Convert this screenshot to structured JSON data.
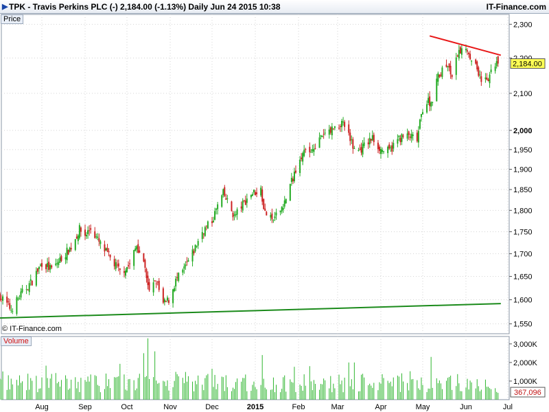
{
  "header": {
    "title": "TPK - Travis Perkins PLC (-)     2,184.00 (-1.13%)     Daily  Jun 24 2015 10:38",
    "brand": "IT-Finance.com"
  },
  "panels": {
    "price_label": "Price",
    "volume_label": "Volume",
    "copyright": "© IT-Finance.com"
  },
  "colors": {
    "up": "#22aa22",
    "down": "#cc2222",
    "support_line": "#1a8a1a",
    "resistance_line": "#e81818",
    "last_price_box": "#ffff55",
    "volume_bar": "#2db52d",
    "volume_box": "#ffffff",
    "grid": "#d4d4d4",
    "header_icon": "#1a46a8"
  },
  "chart_data": [
    {
      "type": "candlestick",
      "title": "TPK - Travis Perkins PLC (-)",
      "y_axis": {
        "scale": "log",
        "range": [
          1530,
          2330
        ],
        "ticks": [
          1550,
          1600,
          1650,
          1700,
          1750,
          1800,
          1850,
          1900,
          1950,
          2000,
          2100,
          2200,
          2300
        ],
        "tick_labels": [
          "1,550",
          "1,600",
          "1,650",
          "1,700",
          "1,750",
          "1,800",
          "1,850",
          "1,900",
          "1,950",
          "2,000",
          "2,100",
          "2,200",
          "2,300"
        ]
      },
      "x_axis": {
        "range": [
          "2014-07-02",
          "2015-07-02"
        ],
        "ticks": [
          {
            "date": "2014-08-01",
            "label": "Aug"
          },
          {
            "date": "2014-09-01",
            "label": "Sep"
          },
          {
            "date": "2014-10-01",
            "label": "Oct"
          },
          {
            "date": "2014-11-01",
            "label": "Nov"
          },
          {
            "date": "2014-12-01",
            "label": "Dec"
          },
          {
            "date": "2015-01-01",
            "label": "2015"
          },
          {
            "date": "2015-02-01",
            "label": "Feb"
          },
          {
            "date": "2015-03-01",
            "label": "Mar"
          },
          {
            "date": "2015-04-01",
            "label": "Apr"
          },
          {
            "date": "2015-05-01",
            "label": "May"
          },
          {
            "date": "2015-06-01",
            "label": "Jun"
          },
          {
            "date": "2015-07-01",
            "label": "Jul"
          }
        ]
      },
      "grid": true,
      "last_price": 2184,
      "last_price_label": "2,184.00",
      "trend_lines": [
        {
          "name": "support",
          "from": {
            "date": "2014-07-02",
            "value": 1562
          },
          "to": {
            "date": "2015-06-26",
            "value": 1592
          }
        },
        {
          "name": "resistance",
          "from": {
            "date": "2015-05-06",
            "value": 2265
          },
          "to": {
            "date": "2015-06-26",
            "value": 2208
          }
        }
      ],
      "close_path": [
        [
          "2014-07-02",
          1608
        ],
        [
          "2014-07-10",
          1580
        ],
        [
          "2014-07-18",
          1615
        ],
        [
          "2014-07-25",
          1640
        ],
        [
          "2014-08-01",
          1680
        ],
        [
          "2014-08-08",
          1665
        ],
        [
          "2014-08-15",
          1690
        ],
        [
          "2014-08-22",
          1715
        ],
        [
          "2014-08-28",
          1755
        ],
        [
          "2014-09-01",
          1742
        ],
        [
          "2014-09-05",
          1758
        ],
        [
          "2014-09-12",
          1720
        ],
        [
          "2014-09-19",
          1690
        ],
        [
          "2014-09-26",
          1660
        ],
        [
          "2014-10-03",
          1675
        ],
        [
          "2014-10-08",
          1720
        ],
        [
          "2014-10-13",
          1680
        ],
        [
          "2014-10-17",
          1615
        ],
        [
          "2014-10-22",
          1640
        ],
        [
          "2014-10-27",
          1590
        ],
        [
          "2014-10-31",
          1600
        ],
        [
          "2014-11-05",
          1640
        ],
        [
          "2014-11-10",
          1660
        ],
        [
          "2014-11-17",
          1700
        ],
        [
          "2014-11-24",
          1750
        ],
        [
          "2014-12-01",
          1775
        ],
        [
          "2014-12-05",
          1810
        ],
        [
          "2014-12-09",
          1840
        ],
        [
          "2014-12-12",
          1820
        ],
        [
          "2014-12-17",
          1785
        ],
        [
          "2014-12-22",
          1810
        ],
        [
          "2014-12-29",
          1840
        ],
        [
          "2015-01-05",
          1850
        ],
        [
          "2015-01-08",
          1795
        ],
        [
          "2015-01-13",
          1775
        ],
        [
          "2015-01-16",
          1785
        ],
        [
          "2015-01-22",
          1820
        ],
        [
          "2015-01-28",
          1880
        ],
        [
          "2015-02-02",
          1935
        ],
        [
          "2015-02-09",
          1945
        ],
        [
          "2015-02-16",
          1975
        ],
        [
          "2015-02-23",
          2000
        ],
        [
          "2015-03-02",
          2015
        ],
        [
          "2015-03-06",
          2020
        ],
        [
          "2015-03-10",
          1970
        ],
        [
          "2015-03-16",
          1945
        ],
        [
          "2015-03-20",
          1960
        ],
        [
          "2015-03-26",
          1980
        ],
        [
          "2015-04-01",
          1950
        ],
        [
          "2015-04-07",
          1945
        ],
        [
          "2015-04-14",
          1980
        ],
        [
          "2015-04-21",
          1985
        ],
        [
          "2015-04-27",
          1975
        ],
        [
          "2015-05-01",
          2060
        ],
        [
          "2015-05-05",
          2080
        ],
        [
          "2015-05-08",
          2070
        ],
        [
          "2015-05-12",
          2150
        ],
        [
          "2015-05-18",
          2180
        ],
        [
          "2015-05-22",
          2150
        ],
        [
          "2015-05-27",
          2215
        ],
        [
          "2015-06-01",
          2235
        ],
        [
          "2015-06-05",
          2200
        ],
        [
          "2015-06-09",
          2170
        ],
        [
          "2015-06-12",
          2140
        ],
        [
          "2015-06-16",
          2130
        ],
        [
          "2015-06-19",
          2155
        ],
        [
          "2015-06-23",
          2195
        ],
        [
          "2015-06-24",
          2184
        ]
      ]
    },
    {
      "type": "bar",
      "title": "Volume",
      "y_axis": {
        "range": [
          0,
          3400000
        ],
        "ticks": [
          1000000,
          2000000,
          3000000
        ],
        "tick_labels": [
          "1,000K",
          "2,000K",
          "3,000K"
        ]
      },
      "last_volume": 367096,
      "last_volume_label": "367,096",
      "spikes": [
        {
          "date": "2014-10-16",
          "value": 3300000
        },
        {
          "date": "2014-10-21",
          "value": 2600000
        },
        {
          "date": "2014-10-13",
          "value": 2500000
        },
        {
          "date": "2015-01-06",
          "value": 2400000
        },
        {
          "date": "2015-05-07",
          "value": 2300000
        },
        {
          "date": "2015-03-09",
          "value": 2000000
        },
        {
          "date": "2015-03-13",
          "value": 2000000
        }
      ],
      "typical_range": [
        400000,
        1400000
      ]
    }
  ]
}
